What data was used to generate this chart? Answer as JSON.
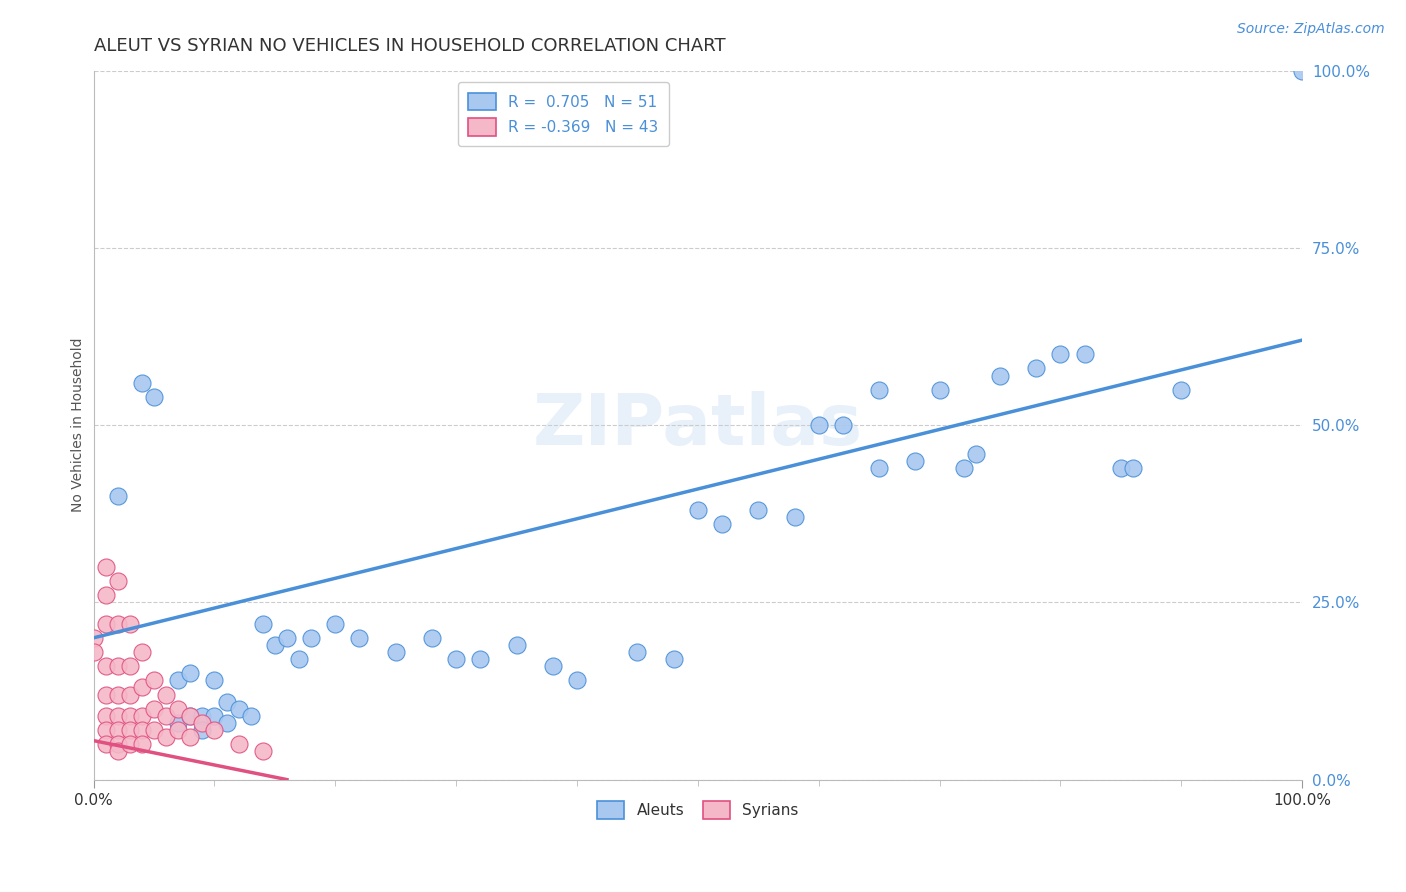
{
  "title": "ALEUT VS SYRIAN NO VEHICLES IN HOUSEHOLD CORRELATION CHART",
  "source_text": "Source: ZipAtlas.com",
  "ylabel": "No Vehicles in Household",
  "xlim": [
    0.0,
    1.0
  ],
  "ylim": [
    0.0,
    1.0
  ],
  "xtick_positions": [
    0.0,
    1.0
  ],
  "xtick_labels": [
    "0.0%",
    "100.0%"
  ],
  "ytick_values": [
    0.0,
    0.25,
    0.5,
    0.75,
    1.0
  ],
  "ytick_labels": [
    "0.0%",
    "25.0%",
    "50.0%",
    "75.0%",
    "100.0%"
  ],
  "aleut_color": "#a8c8f0",
  "syrian_color": "#f5b8c8",
  "aleut_line_color": "#4a90d9",
  "syrian_line_color": "#e05080",
  "aleut_R": 0.705,
  "aleut_N": 51,
  "syrian_R": -0.369,
  "syrian_N": 43,
  "watermark": "ZIPatlas",
  "background_color": "#ffffff",
  "grid_color": "#cccccc",
  "aleut_points": [
    [
      0.02,
      0.4
    ],
    [
      0.04,
      0.56
    ],
    [
      0.05,
      0.54
    ],
    [
      0.07,
      0.08
    ],
    [
      0.07,
      0.14
    ],
    [
      0.08,
      0.09
    ],
    [
      0.08,
      0.15
    ],
    [
      0.09,
      0.09
    ],
    [
      0.09,
      0.07
    ],
    [
      0.1,
      0.09
    ],
    [
      0.1,
      0.14
    ],
    [
      0.11,
      0.08
    ],
    [
      0.11,
      0.11
    ],
    [
      0.12,
      0.1
    ],
    [
      0.13,
      0.09
    ],
    [
      0.14,
      0.22
    ],
    [
      0.15,
      0.19
    ],
    [
      0.16,
      0.2
    ],
    [
      0.17,
      0.17
    ],
    [
      0.18,
      0.2
    ],
    [
      0.2,
      0.22
    ],
    [
      0.22,
      0.2
    ],
    [
      0.25,
      0.18
    ],
    [
      0.28,
      0.2
    ],
    [
      0.3,
      0.17
    ],
    [
      0.32,
      0.17
    ],
    [
      0.35,
      0.19
    ],
    [
      0.38,
      0.16
    ],
    [
      0.4,
      0.14
    ],
    [
      0.45,
      0.18
    ],
    [
      0.48,
      0.17
    ],
    [
      0.5,
      0.38
    ],
    [
      0.52,
      0.36
    ],
    [
      0.55,
      0.38
    ],
    [
      0.58,
      0.37
    ],
    [
      0.6,
      0.5
    ],
    [
      0.62,
      0.5
    ],
    [
      0.65,
      0.55
    ],
    [
      0.65,
      0.44
    ],
    [
      0.68,
      0.45
    ],
    [
      0.7,
      0.55
    ],
    [
      0.72,
      0.44
    ],
    [
      0.73,
      0.46
    ],
    [
      0.75,
      0.57
    ],
    [
      0.78,
      0.58
    ],
    [
      0.8,
      0.6
    ],
    [
      0.82,
      0.6
    ],
    [
      0.85,
      0.44
    ],
    [
      0.86,
      0.44
    ],
    [
      0.9,
      0.55
    ],
    [
      1.0,
      1.0
    ]
  ],
  "syrian_points": [
    [
      0.0,
      0.2
    ],
    [
      0.0,
      0.18
    ],
    [
      0.01,
      0.3
    ],
    [
      0.01,
      0.26
    ],
    [
      0.01,
      0.22
    ],
    [
      0.01,
      0.16
    ],
    [
      0.01,
      0.12
    ],
    [
      0.01,
      0.09
    ],
    [
      0.01,
      0.07
    ],
    [
      0.01,
      0.05
    ],
    [
      0.02,
      0.28
    ],
    [
      0.02,
      0.22
    ],
    [
      0.02,
      0.16
    ],
    [
      0.02,
      0.12
    ],
    [
      0.02,
      0.09
    ],
    [
      0.02,
      0.07
    ],
    [
      0.02,
      0.05
    ],
    [
      0.02,
      0.04
    ],
    [
      0.03,
      0.22
    ],
    [
      0.03,
      0.16
    ],
    [
      0.03,
      0.12
    ],
    [
      0.03,
      0.09
    ],
    [
      0.03,
      0.07
    ],
    [
      0.03,
      0.05
    ],
    [
      0.04,
      0.18
    ],
    [
      0.04,
      0.13
    ],
    [
      0.04,
      0.09
    ],
    [
      0.04,
      0.07
    ],
    [
      0.04,
      0.05
    ],
    [
      0.05,
      0.14
    ],
    [
      0.05,
      0.1
    ],
    [
      0.05,
      0.07
    ],
    [
      0.06,
      0.12
    ],
    [
      0.06,
      0.09
    ],
    [
      0.06,
      0.06
    ],
    [
      0.07,
      0.1
    ],
    [
      0.07,
      0.07
    ],
    [
      0.08,
      0.09
    ],
    [
      0.08,
      0.06
    ],
    [
      0.09,
      0.08
    ],
    [
      0.1,
      0.07
    ],
    [
      0.12,
      0.05
    ],
    [
      0.14,
      0.04
    ]
  ],
  "title_fontsize": 13,
  "axis_label_fontsize": 10,
  "tick_fontsize": 11,
  "legend_fontsize": 11,
  "source_fontsize": 10
}
